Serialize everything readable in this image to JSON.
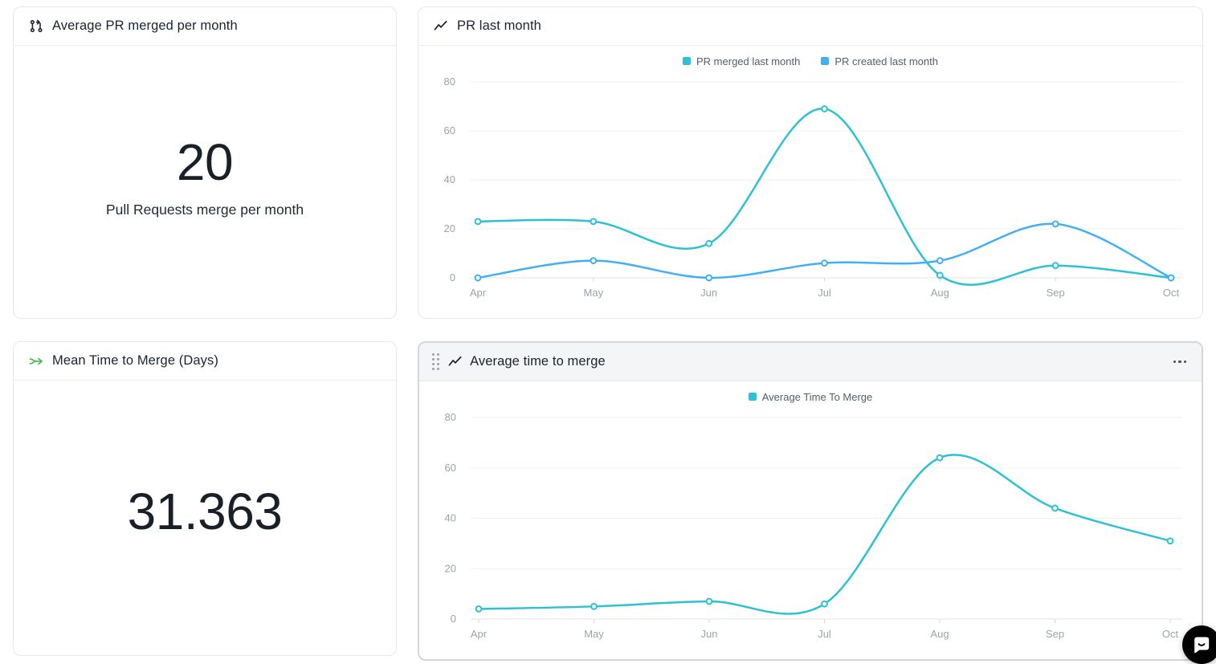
{
  "cards": {
    "avg_pr": {
      "title": "Average PR merged per month",
      "value": "20",
      "label": "Pull Requests merge per month"
    },
    "pr_last_month": {
      "title": "PR last month"
    },
    "mean_time": {
      "title": "Mean Time to Merge (Days)",
      "value": "31.363",
      "icon_color": "#3eba49"
    },
    "avg_time": {
      "title": "Average time to merge"
    }
  },
  "chart_data": [
    {
      "type": "line",
      "title": "PR last month",
      "categories": [
        "Apr",
        "May",
        "Jun",
        "Jul",
        "Aug",
        "Sep",
        "Oct"
      ],
      "series": [
        {
          "name": "PR merged last month",
          "color": "#2cc2d3",
          "values": [
            23,
            23,
            14,
            69,
            1,
            5,
            0
          ]
        },
        {
          "name": "PR created last month",
          "color": "#42aff5",
          "values": [
            0,
            7,
            0,
            6,
            7,
            22,
            0
          ]
        }
      ],
      "ylim": [
        0,
        80
      ],
      "yticks": [
        0,
        20,
        40,
        60,
        80
      ],
      "grid": true,
      "legend_position": "top"
    },
    {
      "type": "line",
      "title": "Average time to merge",
      "categories": [
        "Apr",
        "May",
        "Jun",
        "Jul",
        "Aug",
        "Sep",
        "Oct"
      ],
      "series": [
        {
          "name": "Average Time To Merge",
          "color": "#2cc2d3",
          "values": [
            4,
            5,
            7,
            6,
            64,
            44,
            31
          ]
        }
      ],
      "ylim": [
        0,
        80
      ],
      "yticks": [
        0,
        20,
        40,
        60,
        80
      ],
      "grid": true,
      "legend_position": "top"
    }
  ],
  "axis_style": {
    "tick_color": "#9ba3ab",
    "grid_color": "#f0f1f3",
    "axis_color": "#e2e4e7"
  }
}
